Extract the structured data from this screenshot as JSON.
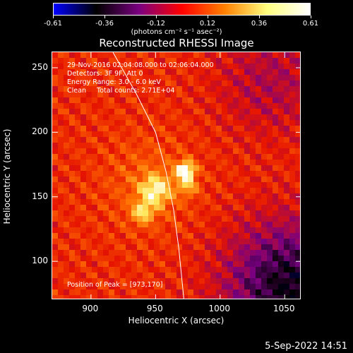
{
  "colorbar": {
    "ticks": [
      "-0.61",
      "-0.36",
      "-0.12",
      "0.12",
      "0.36",
      "0.61"
    ],
    "label": "(photons cm⁻² s⁻¹ asec⁻²)",
    "colors": [
      "#0000ff",
      "#000000",
      "#7a0080",
      "#ff0000",
      "#ff8000",
      "#ffff80",
      "#ffffff"
    ]
  },
  "chart_data": {
    "type": "heatmap",
    "title": "Reconstructed RHESSI Image",
    "xlabel": "Heliocentric X (arcsec)",
    "ylabel": "Heliocentric Y (arcsec)",
    "xlim": [
      870,
      1063
    ],
    "ylim": [
      70,
      262
    ],
    "x_ticks": [
      "900",
      "950",
      "1000",
      "1050"
    ],
    "y_ticks": [
      "100",
      "150",
      "200",
      "250"
    ],
    "zlim": [
      -0.61,
      0.61
    ],
    "info_lines": [
      "29-Nov-2016 02:04:08.000 to 02:06:04.000",
      "Detectors: 3F 9F, Att 0",
      "Energy Range: 3.0 - 6.0 keV",
      "Clean     Total counts: 2.71E+04"
    ],
    "peak_text": "Position of Peak = [973,170]",
    "peak": [
      973,
      170
    ],
    "limb_curve": [
      [
        917,
        262
      ],
      [
        935,
        230
      ],
      [
        950,
        200
      ],
      [
        958,
        170
      ],
      [
        964,
        140
      ],
      [
        968,
        110
      ],
      [
        972,
        70
      ]
    ]
  },
  "timestamp": "5-Sep-2022 14:51"
}
